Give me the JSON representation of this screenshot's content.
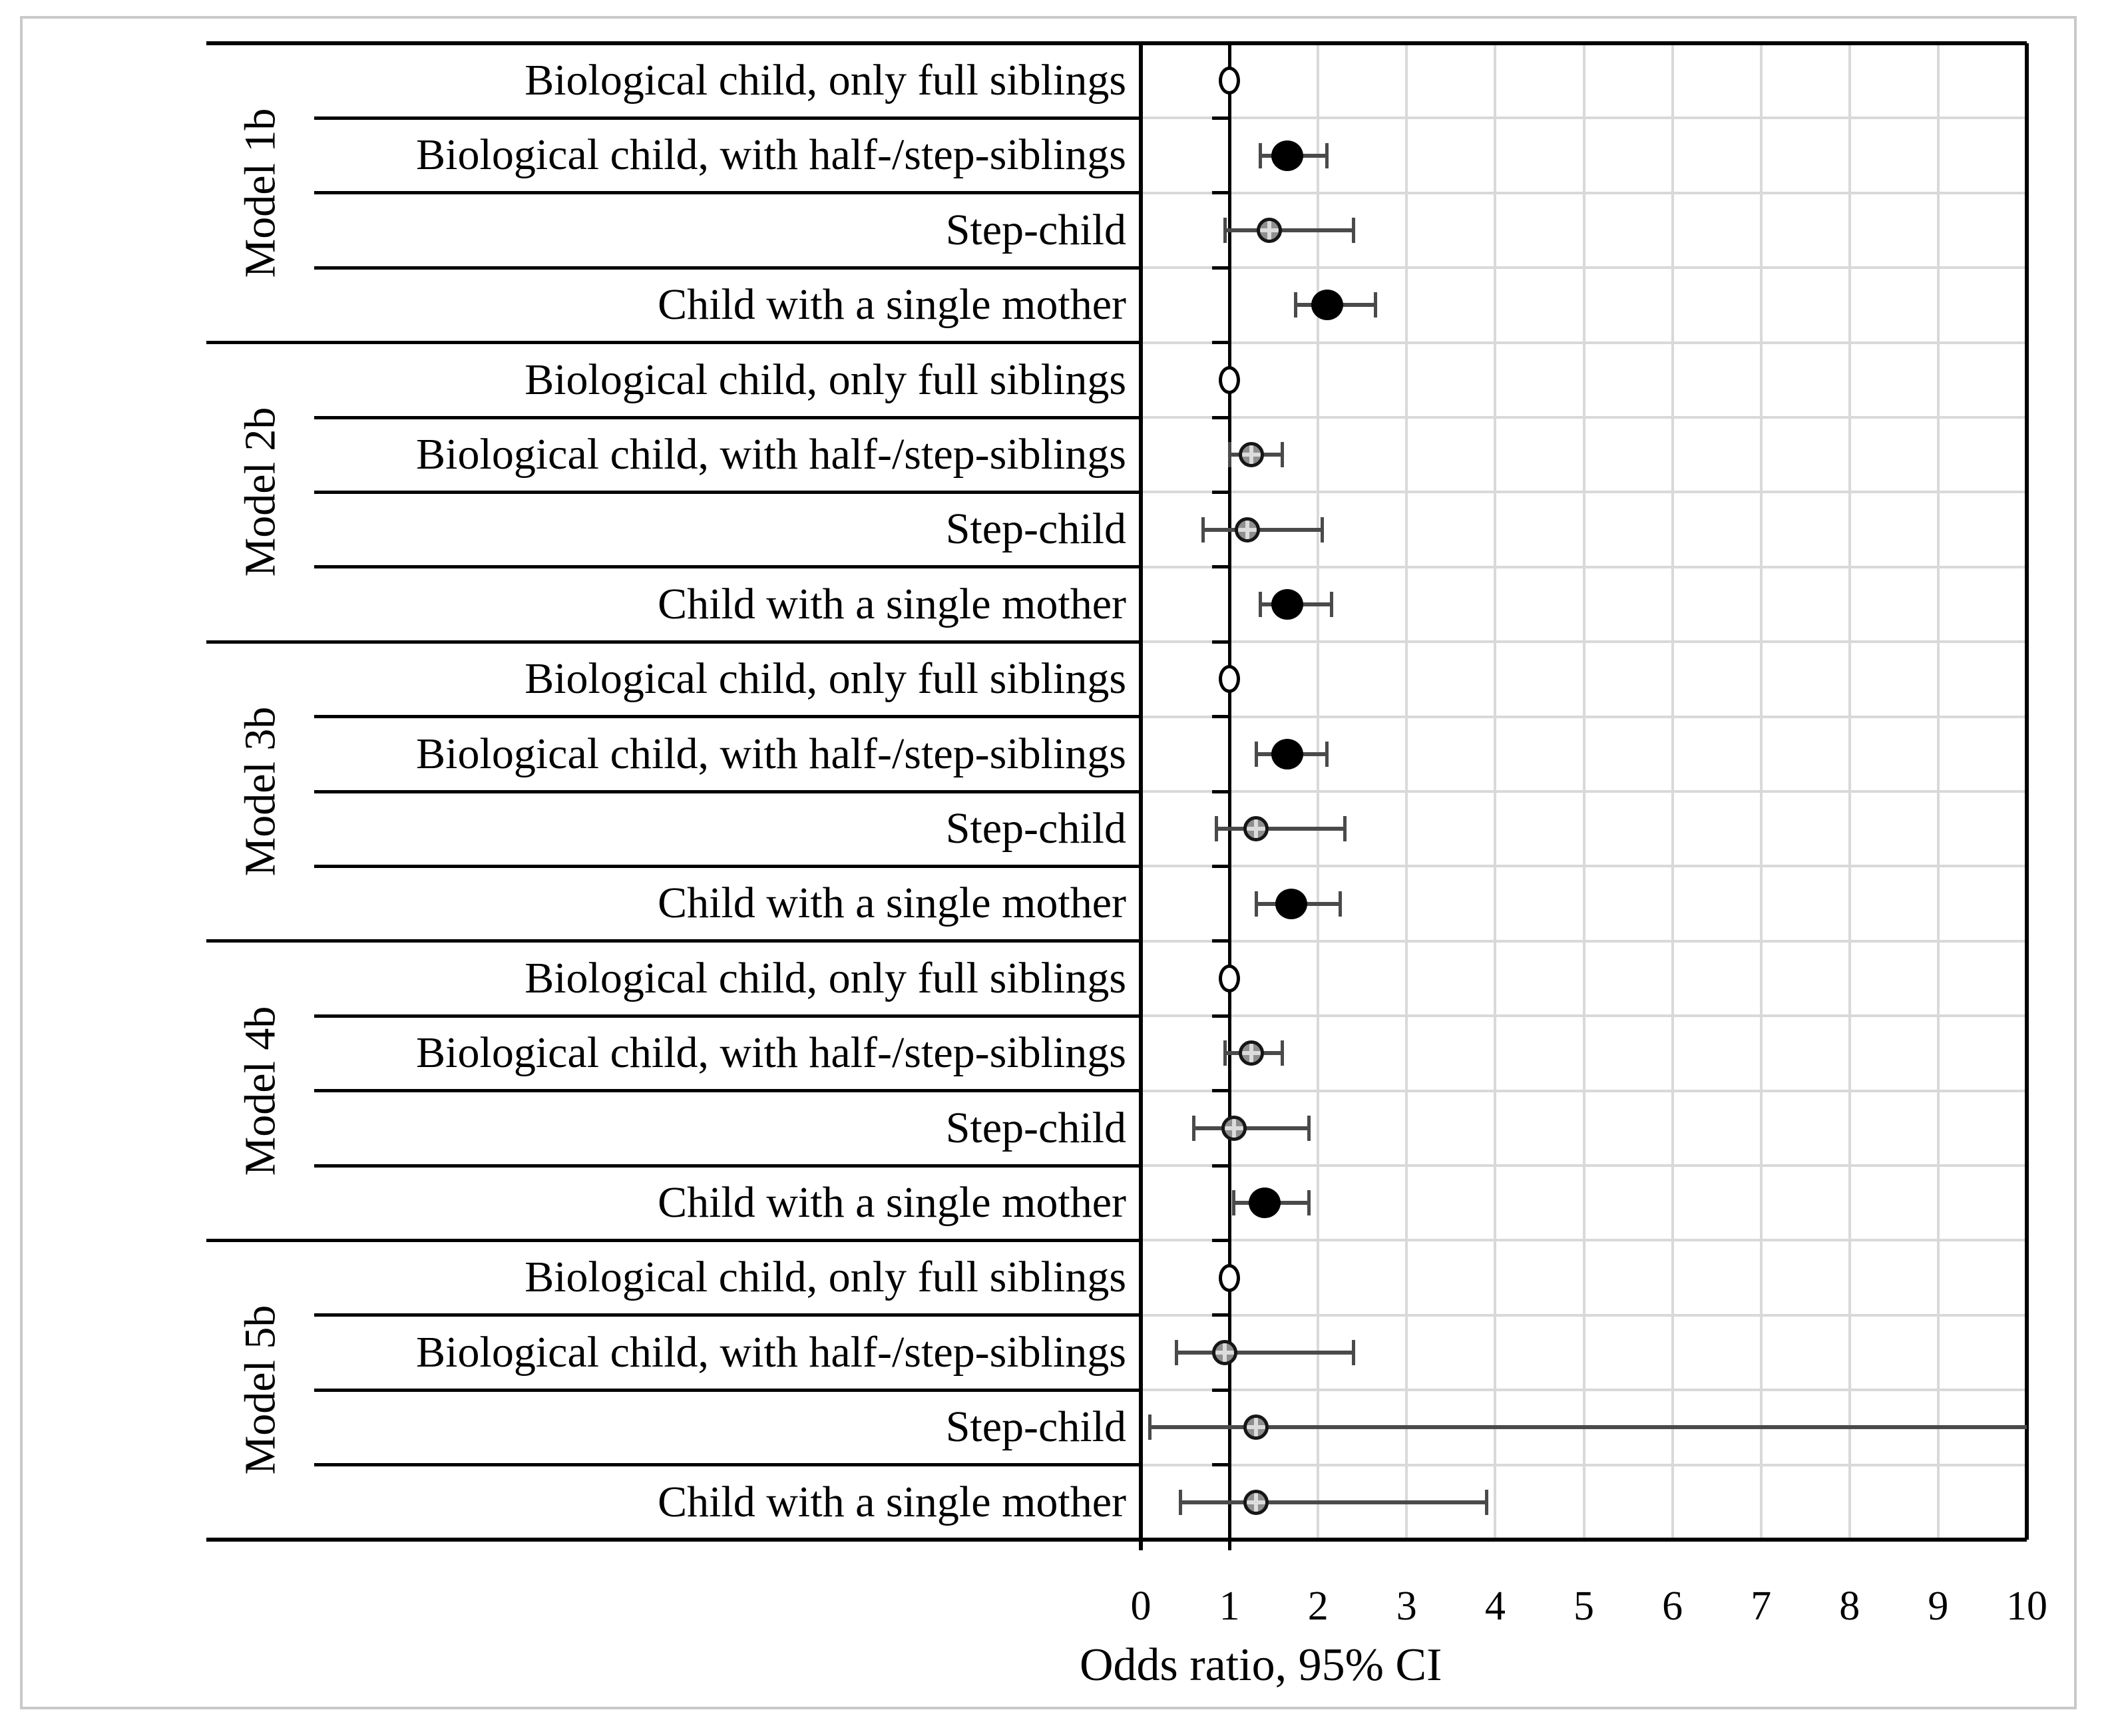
{
  "figure": {
    "background": "#ffffff",
    "border_color": "#c9c9c9"
  },
  "chart_data": {
    "type": "forest",
    "title": "",
    "xlabel": "Odds ratio, 95% CI",
    "x_axis": {
      "min": 0,
      "max": 10,
      "tick_labels": [
        "0",
        "1",
        "2",
        "3",
        "4",
        "5",
        "6",
        "7",
        "8",
        "9",
        "10"
      ],
      "reference_line_x": 1,
      "grid": true
    },
    "marker_legend": {
      "significant": "black filled circle (CI excludes 1)",
      "nonsignificant": "gray hatched open circle (CI crosses 1)",
      "reference": "white open circle at OR = 1 (reference category, no CI)"
    },
    "colors": {
      "significant_fill": "#000000",
      "nonsignificant_fill": "#8f8f8f",
      "reference_fill": "#ffffff",
      "error_bar": "#4a4a4a",
      "gridline": "#d9d9d9",
      "text": "#000000"
    },
    "models": [
      {
        "label": "Model 1b",
        "points": [
          {
            "label": "Biological child, only full siblings",
            "or": 1.0,
            "ci_low": null,
            "ci_high": null,
            "marker": "reference"
          },
          {
            "label": "Biological child, with half-/step-siblings",
            "or": 1.65,
            "ci_low": 1.35,
            "ci_high": 2.1,
            "marker": "significant"
          },
          {
            "label": "Step-child",
            "or": 1.45,
            "ci_low": 0.95,
            "ci_high": 2.4,
            "marker": "nonsignificant"
          },
          {
            "label": "Child with a single mother",
            "or": 2.1,
            "ci_low": 1.75,
            "ci_high": 2.65,
            "marker": "significant"
          }
        ]
      },
      {
        "label": "Model 2b",
        "points": [
          {
            "label": "Biological child, only full siblings",
            "or": 1.0,
            "ci_low": null,
            "ci_high": null,
            "marker": "reference"
          },
          {
            "label": "Biological child, with half-/step-siblings",
            "or": 1.25,
            "ci_low": 1.0,
            "ci_high": 1.6,
            "marker": "nonsignificant"
          },
          {
            "label": "Step-child",
            "or": 1.2,
            "ci_low": 0.7,
            "ci_high": 2.05,
            "marker": "nonsignificant"
          },
          {
            "label": "Child with a single mother",
            "or": 1.65,
            "ci_low": 1.35,
            "ci_high": 2.15,
            "marker": "significant"
          }
        ]
      },
      {
        "label": "Model 3b",
        "points": [
          {
            "label": "Biological child, only full siblings",
            "or": 1.0,
            "ci_low": null,
            "ci_high": null,
            "marker": "reference"
          },
          {
            "label": "Biological child, with half-/step-siblings",
            "or": 1.65,
            "ci_low": 1.3,
            "ci_high": 2.1,
            "marker": "significant"
          },
          {
            "label": "Step-child",
            "or": 1.3,
            "ci_low": 0.85,
            "ci_high": 2.3,
            "marker": "nonsignificant"
          },
          {
            "label": "Child with a single mother",
            "or": 1.7,
            "ci_low": 1.3,
            "ci_high": 2.25,
            "marker": "significant"
          }
        ]
      },
      {
        "label": "Model 4b",
        "points": [
          {
            "label": "Biological child, only full siblings",
            "or": 1.0,
            "ci_low": null,
            "ci_high": null,
            "marker": "reference"
          },
          {
            "label": "Biological child, with half-/step-siblings",
            "or": 1.25,
            "ci_low": 0.95,
            "ci_high": 1.6,
            "marker": "nonsignificant"
          },
          {
            "label": "Step-child",
            "or": 1.05,
            "ci_low": 0.6,
            "ci_high": 1.9,
            "marker": "nonsignificant"
          },
          {
            "label": "Child with a single mother",
            "or": 1.4,
            "ci_low": 1.05,
            "ci_high": 1.9,
            "marker": "significant"
          }
        ]
      },
      {
        "label": "Model 5b",
        "points": [
          {
            "label": "Biological child, only full siblings",
            "or": 1.0,
            "ci_low": null,
            "ci_high": null,
            "marker": "reference"
          },
          {
            "label": "Biological child, with half-/step-siblings",
            "or": 0.95,
            "ci_low": 0.4,
            "ci_high": 2.4,
            "marker": "nonsignificant"
          },
          {
            "label": "Step-child",
            "or": 1.3,
            "ci_low": 0.1,
            "ci_high": 10,
            "ci_high_truncated": true,
            "marker": "nonsignificant"
          },
          {
            "label": "Child with a single mother",
            "or": 1.3,
            "ci_low": 0.45,
            "ci_high": 3.9,
            "marker": "nonsignificant"
          }
        ]
      }
    ]
  }
}
